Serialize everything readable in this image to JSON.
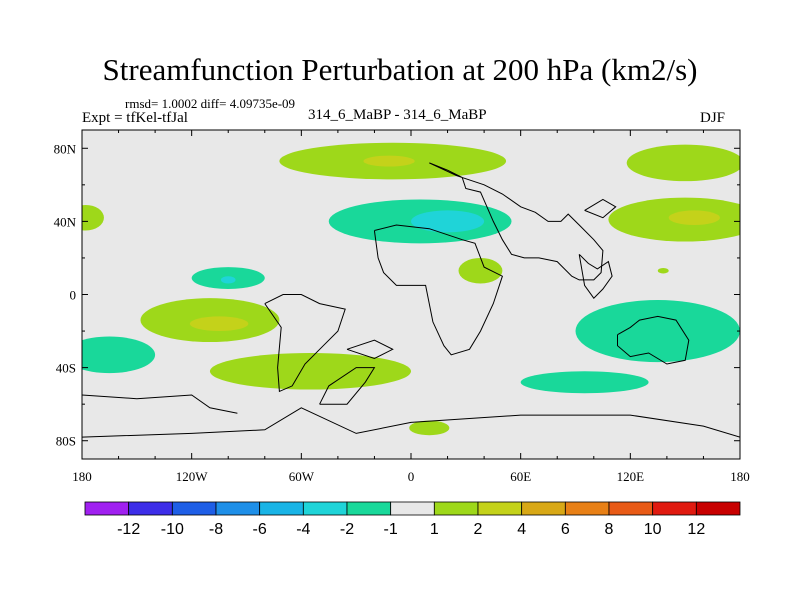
{
  "chart_data": {
    "type": "heatmap",
    "title": "Streamfunction Perturbation at 200 hPa (km2/s)",
    "stats_text": "rmsd= 1.0002 diff= 4.09735e-09",
    "left_label": "Expt = tfKel-tfJal",
    "center_label": "314_6_MaBP - 314_6_MaBP",
    "right_label": "DJF",
    "x_ticks": [
      "180",
      "120W",
      "60W",
      "0",
      "60E",
      "120E",
      "180"
    ],
    "x_tick_values": [
      -180,
      -120,
      -60,
      0,
      60,
      120,
      180
    ],
    "y_ticks": [
      "80N",
      "40N",
      "0",
      "40S",
      "80S"
    ],
    "y_tick_values": [
      80,
      40,
      0,
      -40,
      -80
    ],
    "xlim": [
      -180,
      180
    ],
    "ylim": [
      -90,
      90
    ],
    "colorbar": {
      "labels": [
        "-12",
        "-10",
        "-8",
        "-6",
        "-4",
        "-2",
        "-1",
        "1",
        "2",
        "4",
        "6",
        "8",
        "10",
        "12"
      ],
      "colors": [
        "#a020f0",
        "#3d2de8",
        "#1e5ee6",
        "#1e8fe8",
        "#19b4e6",
        "#1fd4d8",
        "#19d89a",
        "#e8e8e8",
        "#9ed81a",
        "#c4d21a",
        "#d8a816",
        "#e88016",
        "#e85a16",
        "#e01a10",
        "#c80000"
      ]
    },
    "regions": [
      {
        "level": "1 to 2",
        "color": "#9ed81a",
        "cx": -10,
        "cy": 73,
        "rx": 62,
        "ry": 10
      },
      {
        "level": "2 to 4",
        "color": "#c4d21a",
        "cx": -12,
        "cy": 73,
        "rx": 14,
        "ry": 3
      },
      {
        "level": "1 to 2",
        "color": "#9ed81a",
        "cx": 150,
        "cy": 72,
        "rx": 32,
        "ry": 10
      },
      {
        "level": "-1 to -2",
        "color": "#19d89a",
        "cx": 5,
        "cy": 40,
        "rx": 50,
        "ry": 12
      },
      {
        "level": "-2 to -4",
        "color": "#1fd4d8",
        "cx": 20,
        "cy": 40,
        "rx": 20,
        "ry": 6
      },
      {
        "level": "1 to 2",
        "color": "#9ed81a",
        "cx": 150,
        "cy": 41,
        "rx": 42,
        "ry": 12
      },
      {
        "level": "2 to 4",
        "color": "#c4d21a",
        "cx": 155,
        "cy": 42,
        "rx": 14,
        "ry": 4
      },
      {
        "level": "1 to 2",
        "color": "#9ed81a",
        "cx": -178,
        "cy": 42,
        "rx": 10,
        "ry": 7
      },
      {
        "level": "-1 to -2",
        "color": "#19d89a",
        "cx": -100,
        "cy": 9,
        "rx": 20,
        "ry": 6
      },
      {
        "level": "-2 to -4",
        "color": "#1fd4d8",
        "cx": -100,
        "cy": 8,
        "rx": 4,
        "ry": 2
      },
      {
        "level": "1 to 2",
        "color": "#9ed81a",
        "cx": 38,
        "cy": 13,
        "rx": 12,
        "ry": 7
      },
      {
        "level": "1 to 2",
        "color": "#9ed81a",
        "cx": -110,
        "cy": -14,
        "rx": 38,
        "ry": 12
      },
      {
        "level": "2 to 4",
        "color": "#c4d21a",
        "cx": -105,
        "cy": -16,
        "rx": 16,
        "ry": 4
      },
      {
        "level": "-1 to -2",
        "color": "#19d89a",
        "cx": 135,
        "cy": -20,
        "rx": 45,
        "ry": 17
      },
      {
        "level": "-1 to -2",
        "color": "#19d89a",
        "cx": 95,
        "cy": -48,
        "rx": 35,
        "ry": 6
      },
      {
        "level": "-1 to -2",
        "color": "#19d89a",
        "cx": -165,
        "cy": -33,
        "rx": 25,
        "ry": 10
      },
      {
        "level": "1 to 2",
        "color": "#9ed81a",
        "cx": -55,
        "cy": -42,
        "rx": 55,
        "ry": 10
      },
      {
        "level": "1 to 2",
        "color": "#9ed81a",
        "cx": 10,
        "cy": -73,
        "rx": 11,
        "ry": 4
      },
      {
        "level": "1 to 2",
        "color": "#9ed81a",
        "cx": 138,
        "cy": 13,
        "rx": 3,
        "ry": 1.5
      }
    ],
    "outlines": [
      [
        [
          10,
          72
        ],
        [
          20,
          68
        ],
        [
          28,
          64
        ],
        [
          30,
          58
        ],
        [
          38,
          56
        ],
        [
          45,
          40
        ],
        [
          50,
          30
        ],
        [
          55,
          22
        ],
        [
          62,
          20
        ],
        [
          70,
          20
        ],
        [
          80,
          18
        ],
        [
          88,
          10
        ],
        [
          92,
          8
        ],
        [
          100,
          8
        ],
        [
          104,
          12
        ],
        [
          105,
          24
        ],
        [
          100,
          30
        ],
        [
          92,
          38
        ],
        [
          86,
          44
        ],
        [
          82,
          40
        ],
        [
          75,
          40
        ],
        [
          68,
          45
        ],
        [
          60,
          48
        ],
        [
          50,
          55
        ],
        [
          40,
          60
        ],
        [
          25,
          65
        ],
        [
          10,
          72
        ]
      ],
      [
        [
          -20,
          35
        ],
        [
          -8,
          38
        ],
        [
          10,
          36
        ],
        [
          28,
          30
        ],
        [
          35,
          28
        ],
        [
          40,
          15
        ],
        [
          50,
          10
        ],
        [
          45,
          -5
        ],
        [
          38,
          -20
        ],
        [
          32,
          -30
        ],
        [
          22,
          -33
        ],
        [
          18,
          -28
        ],
        [
          12,
          -15
        ],
        [
          8,
          5
        ],
        [
          -8,
          5
        ],
        [
          -15,
          12
        ],
        [
          -18,
          20
        ],
        [
          -20,
          35
        ]
      ],
      [
        [
          -80,
          -5
        ],
        [
          -70,
          0
        ],
        [
          -60,
          0
        ],
        [
          -50,
          -5
        ],
        [
          -36,
          -8
        ],
        [
          -40,
          -20
        ],
        [
          -48,
          -28
        ],
        [
          -58,
          -38
        ],
        [
          -65,
          -50
        ],
        [
          -72,
          -53
        ],
        [
          -73,
          -40
        ],
        [
          -71,
          -18
        ],
        [
          -80,
          -5
        ]
      ],
      [
        [
          -180,
          -78
        ],
        [
          -120,
          -76
        ],
        [
          -80,
          -74
        ],
        [
          -60,
          -62
        ],
        [
          -30,
          -76
        ],
        [
          0,
          -70
        ],
        [
          60,
          -66
        ],
        [
          120,
          -66
        ],
        [
          160,
          -72
        ],
        [
          180,
          -78
        ],
        [
          180,
          -90
        ],
        [
          -180,
          -90
        ],
        [
          -180,
          -78
        ]
      ],
      [
        [
          113,
          -22
        ],
        [
          120,
          -18
        ],
        [
          125,
          -14
        ],
        [
          135,
          -12
        ],
        [
          145,
          -14
        ],
        [
          152,
          -25
        ],
        [
          150,
          -36
        ],
        [
          140,
          -38
        ],
        [
          130,
          -32
        ],
        [
          120,
          -34
        ],
        [
          113,
          -28
        ],
        [
          113,
          -22
        ]
      ],
      [
        [
          92,
          22
        ],
        [
          97,
          17
        ],
        [
          102,
          14
        ],
        [
          108,
          18
        ],
        [
          110,
          10
        ],
        [
          105,
          3
        ],
        [
          100,
          -2
        ],
        [
          95,
          5
        ],
        [
          92,
          22
        ]
      ],
      [
        [
          -50,
          -60
        ],
        [
          -35,
          -60
        ],
        [
          -25,
          -48
        ],
        [
          -20,
          -40
        ],
        [
          -30,
          -40
        ],
        [
          -45,
          -50
        ],
        [
          -50,
          -60
        ]
      ],
      [
        [
          -180,
          -55
        ],
        [
          -150,
          -57
        ],
        [
          -120,
          -55
        ],
        [
          -110,
          -62
        ],
        [
          -95,
          -65
        ]
      ],
      [
        [
          -35,
          -30
        ],
        [
          -20,
          -25
        ],
        [
          -10,
          -30
        ],
        [
          -20,
          -35
        ],
        [
          -35,
          -30
        ]
      ],
      [
        [
          95,
          46
        ],
        [
          105,
          42
        ],
        [
          112,
          48
        ],
        [
          105,
          52
        ],
        [
          95,
          46
        ]
      ]
    ]
  }
}
